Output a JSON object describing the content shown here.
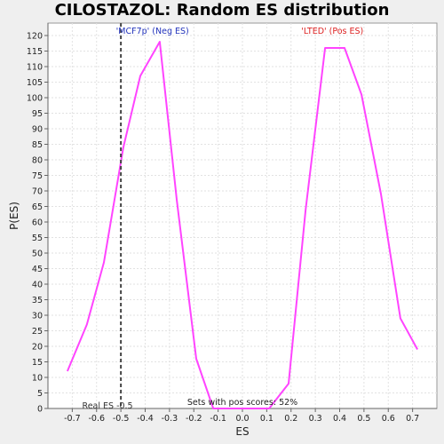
{
  "chart_data": {
    "type": "line",
    "title": "CILOSTAZOL: Random ES distribution",
    "xlabel": "ES",
    "ylabel": "P(ES)",
    "xlim": [
      -0.8,
      0.8
    ],
    "ylim": [
      0,
      124
    ],
    "x_ticks": [
      -0.7,
      -0.6,
      -0.5,
      -0.4,
      -0.3,
      -0.2,
      -0.1,
      0.0,
      0.1,
      0.2,
      0.3,
      0.4,
      0.5,
      0.6,
      0.7
    ],
    "x_tick_labels": [
      "-0.7",
      "-0.6",
      "-0.5",
      "-0.4",
      "-0.3",
      "-0.2",
      "-0.1",
      "0.0",
      "0.1",
      "0.2",
      "0.3",
      "0.4",
      "0.5",
      "0.6",
      "0.7"
    ],
    "y_ticks": [
      0,
      5,
      10,
      15,
      20,
      25,
      30,
      35,
      40,
      45,
      50,
      55,
      60,
      65,
      70,
      75,
      80,
      85,
      90,
      95,
      100,
      105,
      110,
      115,
      120
    ],
    "grid": true,
    "series": [
      {
        "color": "#ff44ff",
        "x": [
          -0.72,
          -0.64,
          -0.57,
          -0.49,
          -0.42,
          -0.34,
          -0.27,
          -0.19,
          -0.12,
          0.02,
          0.11,
          0.19,
          0.26,
          0.34,
          0.42,
          0.49,
          0.57,
          0.65,
          0.72
        ],
        "y": [
          12,
          27,
          47,
          84,
          107,
          118,
          67,
          16,
          0,
          0,
          0,
          8,
          64,
          116,
          116,
          101,
          69,
          29,
          19
        ]
      }
    ],
    "real_es": {
      "x": -0.5,
      "label": "Real ES -0.5",
      "color": "#444444"
    },
    "annotations": {
      "neg": {
        "text": "'MCF7p' (Neg ES)",
        "color": "#2233bb"
      },
      "pos": {
        "text": "'LTED' (Pos ES)",
        "color": "#dd2222"
      },
      "pos_scores": {
        "text": "Sets with pos scores: 52%",
        "color": "#222222"
      }
    },
    "colors": {
      "background": "#efefef",
      "plot_background": "#ffffff",
      "grid": "#e2e2e2"
    }
  }
}
